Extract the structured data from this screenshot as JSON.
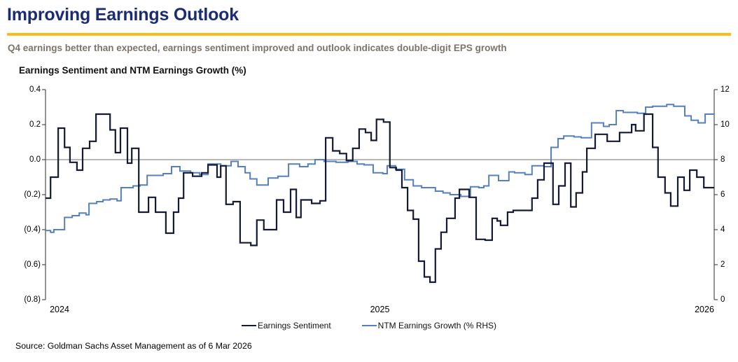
{
  "header": {
    "title": "Improving Earnings Outlook",
    "subtitle": "Q4 earnings better than expected, earnings sentiment improved and outlook indicates double-digit EPS growth"
  },
  "source": "Source: Goldman Sachs Asset Management as of 6 Mar 2026",
  "colors": {
    "title_navy": "#1b2c72",
    "rule_gold": "#fcbb1c",
    "subtitle_gray": "#7c7468",
    "axis_gray": "#4d4d4d",
    "zero_line_gray": "#8c8c8c",
    "sentiment_line": "#141a33",
    "growth_line": "#5580bd"
  },
  "chart_data": {
    "type": "line",
    "title": "Earnings Sentiment and NTM Earnings Growth (%)",
    "interpolation": "step-after",
    "grid": "zero-line-only",
    "legend_position": "bottom",
    "x_axis": {
      "range": [
        2024.0,
        2026.0
      ],
      "ticks": [
        2024,
        2025,
        2026
      ],
      "tick_labels": [
        "2024",
        "2025",
        "2026"
      ]
    },
    "left_axis": {
      "label": "Earnings Sentiment",
      "range": [
        -0.8,
        0.4
      ],
      "ticks": [
        0.4,
        0.2,
        0.0,
        -0.2,
        -0.4,
        -0.6,
        -0.8
      ],
      "tick_labels": [
        "0.4",
        "0.2",
        "0.0",
        "(0.2)",
        "(0.4)",
        "(0.6)",
        "(0.8)"
      ]
    },
    "right_axis": {
      "label": "NTM Earnings Growth (%)",
      "range": [
        0,
        12
      ],
      "ticks": [
        12,
        10,
        8,
        6,
        4,
        2,
        0
      ],
      "tick_labels": [
        "12",
        "10",
        "8",
        "6",
        "4",
        "2",
        "0"
      ]
    },
    "zero_gridline_left_value": 0.0,
    "series": [
      {
        "name": "Earnings Sentiment",
        "axis": "left",
        "color": "#141a33",
        "stroke_width": 2.2,
        "points": [
          [
            2024.0,
            -0.22
          ],
          [
            2024.015,
            -0.1
          ],
          [
            2024.038,
            0.18
          ],
          [
            2024.057,
            0.07
          ],
          [
            2024.073,
            -0.015
          ],
          [
            2024.094,
            -0.06
          ],
          [
            2024.111,
            0.065
          ],
          [
            2024.132,
            0.105
          ],
          [
            2024.151,
            0.26
          ],
          [
            2024.193,
            0.17
          ],
          [
            2024.209,
            0.04
          ],
          [
            2024.224,
            0.18
          ],
          [
            2024.245,
            -0.02
          ],
          [
            2024.258,
            0.065
          ],
          [
            2024.279,
            -0.3
          ],
          [
            2024.308,
            -0.215
          ],
          [
            2024.329,
            -0.3
          ],
          [
            2024.36,
            -0.42
          ],
          [
            2024.383,
            -0.3
          ],
          [
            2024.398,
            -0.22
          ],
          [
            2024.413,
            -0.075
          ],
          [
            2024.44,
            -0.095
          ],
          [
            2024.467,
            -0.075
          ],
          [
            2024.486,
            -0.03
          ],
          [
            2024.513,
            -0.1
          ],
          [
            2024.524,
            -0.035
          ],
          [
            2024.54,
            -0.255
          ],
          [
            2024.561,
            -0.24
          ],
          [
            2024.582,
            -0.475
          ],
          [
            2024.614,
            -0.49
          ],
          [
            2024.632,
            -0.345
          ],
          [
            2024.653,
            -0.4
          ],
          [
            2024.691,
            -0.23
          ],
          [
            2024.712,
            -0.3
          ],
          [
            2024.733,
            -0.17
          ],
          [
            2024.75,
            -0.33
          ],
          [
            2024.764,
            -0.23
          ],
          [
            2024.796,
            -0.25
          ],
          [
            2024.821,
            -0.235
          ],
          [
            2024.838,
            0.125
          ],
          [
            2024.859,
            0.05
          ],
          [
            2024.88,
            0.035
          ],
          [
            2024.9,
            -0.005
          ],
          [
            2024.919,
            0.065
          ],
          [
            2024.938,
            0.175
          ],
          [
            2024.957,
            0.155
          ],
          [
            2024.974,
            0.11
          ],
          [
            2024.99,
            0.23
          ],
          [
            2025.011,
            0.215
          ],
          [
            2025.03,
            -0.045
          ],
          [
            2025.049,
            -0.06
          ],
          [
            2025.066,
            -0.16
          ],
          [
            2025.083,
            -0.29
          ],
          [
            2025.1,
            -0.34
          ],
          [
            2025.116,
            -0.58
          ],
          [
            2025.133,
            -0.67
          ],
          [
            2025.15,
            -0.7
          ],
          [
            2025.166,
            -0.51
          ],
          [
            2025.183,
            -0.415
          ],
          [
            2025.2,
            -0.335
          ],
          [
            2025.225,
            -0.22
          ],
          [
            2025.238,
            -0.17
          ],
          [
            2025.267,
            -0.215
          ],
          [
            2025.288,
            -0.455
          ],
          [
            2025.315,
            -0.46
          ],
          [
            2025.336,
            -0.335
          ],
          [
            2025.351,
            -0.35
          ],
          [
            2025.361,
            -0.375
          ],
          [
            2025.382,
            -0.3
          ],
          [
            2025.399,
            -0.29
          ],
          [
            2025.455,
            -0.22
          ],
          [
            2025.472,
            -0.115
          ],
          [
            2025.491,
            -0.02
          ],
          [
            2025.518,
            -0.255
          ],
          [
            2025.535,
            -0.15
          ],
          [
            2025.554,
            -0.02
          ],
          [
            2025.571,
            -0.27
          ],
          [
            2025.587,
            -0.19
          ],
          [
            2025.606,
            -0.07
          ],
          [
            2025.619,
            0.065
          ],
          [
            2025.644,
            0.145
          ],
          [
            2025.68,
            0.105
          ],
          [
            2025.717,
            0.155
          ],
          [
            2025.753,
            0.2
          ],
          [
            2025.765,
            0.165
          ],
          [
            2025.79,
            0.26
          ],
          [
            2025.816,
            0.07
          ],
          [
            2025.832,
            -0.1
          ],
          [
            2025.853,
            -0.19
          ],
          [
            2025.87,
            -0.265
          ],
          [
            2025.891,
            -0.1
          ],
          [
            2025.91,
            -0.175
          ],
          [
            2025.927,
            -0.06
          ],
          [
            2025.948,
            -0.1
          ],
          [
            2025.969,
            -0.16
          ]
        ]
      },
      {
        "name": "NTM Earnings Growth (% RHS)",
        "axis": "right",
        "color": "#5580bd",
        "stroke_width": 2.0,
        "points": [
          [
            2024.0,
            3.95
          ],
          [
            2024.015,
            3.85
          ],
          [
            2024.025,
            4.0
          ],
          [
            2024.057,
            4.7
          ],
          [
            2024.08,
            4.8
          ],
          [
            2024.101,
            4.95
          ],
          [
            2024.121,
            4.85
          ],
          [
            2024.13,
            5.5
          ],
          [
            2024.153,
            5.6
          ],
          [
            2024.172,
            5.7
          ],
          [
            2024.193,
            5.75
          ],
          [
            2024.214,
            5.65
          ],
          [
            2024.226,
            6.4
          ],
          [
            2024.262,
            6.5
          ],
          [
            2024.283,
            6.55
          ],
          [
            2024.304,
            7.1
          ],
          [
            2024.352,
            7.2
          ],
          [
            2024.377,
            7.6
          ],
          [
            2024.402,
            7.35
          ],
          [
            2024.434,
            7.25
          ],
          [
            2024.461,
            7.15
          ],
          [
            2024.486,
            7.75
          ],
          [
            2024.524,
            7.65
          ],
          [
            2024.555,
            7.9
          ],
          [
            2024.576,
            7.6
          ],
          [
            2024.597,
            7.25
          ],
          [
            2024.612,
            6.9
          ],
          [
            2024.632,
            6.55
          ],
          [
            2024.666,
            6.95
          ],
          [
            2024.695,
            7.05
          ],
          [
            2024.727,
            7.75
          ],
          [
            2024.76,
            7.6
          ],
          [
            2024.785,
            7.75
          ],
          [
            2024.806,
            8.0
          ],
          [
            2024.833,
            7.9
          ],
          [
            2024.869,
            7.85
          ],
          [
            2024.905,
            7.9
          ],
          [
            2024.932,
            7.75
          ],
          [
            2024.953,
            7.7
          ],
          [
            2024.98,
            7.25
          ],
          [
            2025.009,
            7.2
          ],
          [
            2025.022,
            7.65
          ],
          [
            2025.047,
            7.45
          ],
          [
            2025.074,
            6.85
          ],
          [
            2025.1,
            6.5
          ],
          [
            2025.125,
            6.4
          ],
          [
            2025.166,
            6.2
          ],
          [
            2025.189,
            6.1
          ],
          [
            2025.21,
            6.0
          ],
          [
            2025.242,
            5.9
          ],
          [
            2025.271,
            6.45
          ],
          [
            2025.296,
            6.4
          ],
          [
            2025.311,
            6.5
          ],
          [
            2025.326,
            7.1
          ],
          [
            2025.355,
            6.8
          ],
          [
            2025.386,
            7.3
          ],
          [
            2025.403,
            7.25
          ],
          [
            2025.434,
            7.15
          ],
          [
            2025.455,
            7.65
          ],
          [
            2025.491,
            7.6
          ],
          [
            2025.512,
            8.7
          ],
          [
            2025.533,
            9.2
          ],
          [
            2025.55,
            9.35
          ],
          [
            2025.581,
            9.3
          ],
          [
            2025.602,
            9.25
          ],
          [
            2025.633,
            10.1
          ],
          [
            2025.669,
            9.9
          ],
          [
            2025.686,
            10.0
          ],
          [
            2025.707,
            10.8
          ],
          [
            2025.728,
            10.7
          ],
          [
            2025.77,
            10.65
          ],
          [
            2025.795,
            11.0
          ],
          [
            2025.816,
            11.05
          ],
          [
            2025.858,
            11.15
          ],
          [
            2025.879,
            11.05
          ],
          [
            2025.912,
            10.5
          ],
          [
            2025.931,
            10.25
          ],
          [
            2025.952,
            10.1
          ],
          [
            2025.973,
            10.6
          ]
        ]
      }
    ]
  }
}
